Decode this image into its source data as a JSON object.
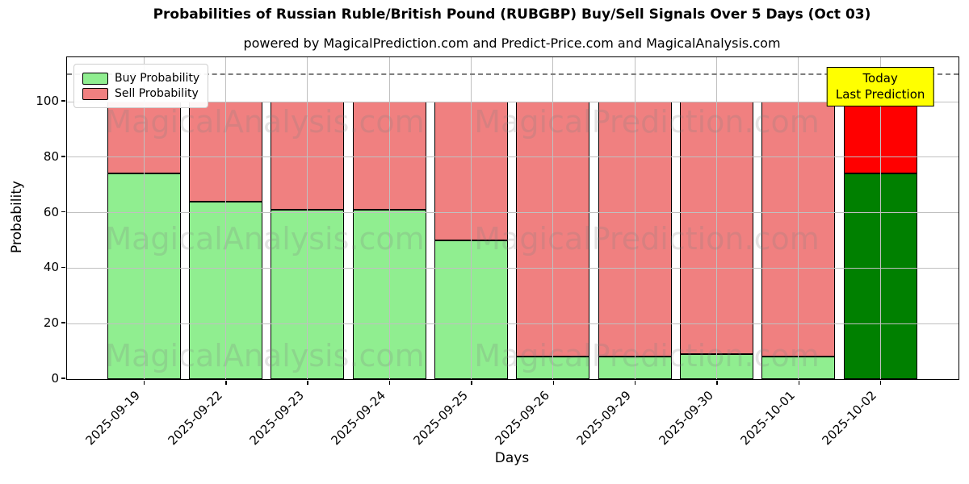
{
  "title": "Probabilities of Russian Ruble/British Pound (RUBGBP) Buy/Sell Signals Over 5 Days (Oct 03)",
  "subtitle": "powered by MagicalPrediction.com and Predict-Price.com and MagicalAnalysis.com",
  "legend": {
    "items": [
      {
        "label": "Buy Probability",
        "color": "#90EE90"
      },
      {
        "label": "Sell Probability",
        "color": "#F08080"
      }
    ]
  },
  "annotation": {
    "line1": "Today",
    "line2": "Last Prediction",
    "bg_color": "#FFFF00"
  },
  "watermarks": {
    "left": "MagicalAnalysis.com",
    "right": "MagicalPrediction.com"
  },
  "axes": {
    "xlabel": "Days",
    "ylabel": "Probability",
    "yticks": [
      0,
      20,
      40,
      60,
      80,
      100
    ]
  },
  "chart_data": {
    "type": "bar",
    "stacked": true,
    "categories": [
      "2025-09-19",
      "2025-09-22",
      "2025-09-23",
      "2025-09-24",
      "2025-09-25",
      "2025-09-26",
      "2025-09-29",
      "2025-09-30",
      "2025-10-01",
      "2025-10-02"
    ],
    "series": [
      {
        "name": "Buy Probability",
        "color": "#90EE90",
        "today_color": "#008000",
        "values": [
          74,
          64,
          61,
          61,
          50,
          8,
          8,
          9,
          8,
          74
        ]
      },
      {
        "name": "Sell Probability",
        "color": "#F08080",
        "today_color": "#FF0000",
        "values": [
          26,
          36,
          39,
          39,
          50,
          92,
          92,
          91,
          92,
          26
        ]
      }
    ],
    "today_index": 9,
    "ylim": [
      0,
      116
    ],
    "dashed_line_y": 110,
    "grid": true,
    "legend_position": "upper left",
    "bar_edge_color": "#000000",
    "xlabel": "Days",
    "ylabel": "Probability"
  }
}
